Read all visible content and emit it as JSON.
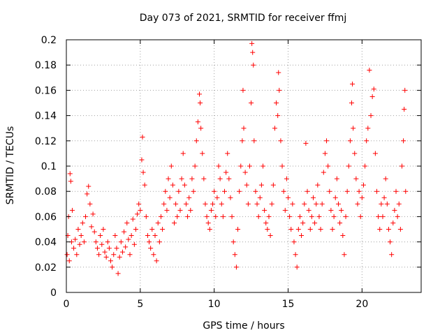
{
  "chart_data": {
    "type": "scatter",
    "title": "Day 073 of 2021, SRMTID for receiver ffmj",
    "xlabel": "GPS time / hours",
    "ylabel": "SRMTID / TECUs",
    "xlim": [
      0,
      24
    ],
    "ylim": [
      0,
      0.2
    ],
    "xticks": [
      0,
      5,
      10,
      15,
      20
    ],
    "xtick_labels": [
      "0",
      "5",
      "10",
      "15",
      "20"
    ],
    "yticks": [
      0,
      0.02,
      0.04,
      0.06,
      0.08,
      0.1,
      0.12,
      0.14,
      0.16,
      0.18,
      0.2
    ],
    "ytick_labels": [
      "0",
      "0.02",
      "0.04",
      "0.06",
      "0.08",
      "0.1",
      "0.12",
      "0.14",
      "0.16",
      "0.18",
      "0.2"
    ],
    "grid": true,
    "marker": "+",
    "color": "#ff0000",
    "series": [
      {
        "name": "SRMTID",
        "points": [
          [
            0.05,
            0.03
          ],
          [
            0.1,
            0.045
          ],
          [
            0.15,
            0.06
          ],
          [
            0.2,
            0.025
          ],
          [
            0.25,
            0.094
          ],
          [
            0.3,
            0.088
          ],
          [
            0.35,
            0.04
          ],
          [
            0.4,
            0.065
          ],
          [
            0.5,
            0.035
          ],
          [
            0.6,
            0.042
          ],
          [
            0.7,
            0.03
          ],
          [
            0.8,
            0.05
          ],
          [
            0.9,
            0.038
          ],
          [
            1.0,
            0.045
          ],
          [
            1.1,
            0.055
          ],
          [
            1.2,
            0.04
          ],
          [
            1.3,
            0.06
          ],
          [
            1.4,
            0.078
          ],
          [
            1.5,
            0.084
          ],
          [
            1.6,
            0.07
          ],
          [
            1.7,
            0.052
          ],
          [
            1.8,
            0.062
          ],
          [
            1.9,
            0.048
          ],
          [
            2.0,
            0.04
          ],
          [
            2.1,
            0.035
          ],
          [
            2.2,
            0.03
          ],
          [
            2.3,
            0.045
          ],
          [
            2.4,
            0.038
          ],
          [
            2.5,
            0.05
          ],
          [
            2.6,
            0.032
          ],
          [
            2.7,
            0.028
          ],
          [
            2.8,
            0.04
          ],
          [
            2.9,
            0.035
          ],
          [
            3.0,
            0.025
          ],
          [
            3.1,
            0.02
          ],
          [
            3.2,
            0.03
          ],
          [
            3.3,
            0.045
          ],
          [
            3.4,
            0.035
          ],
          [
            3.5,
            0.015
          ],
          [
            3.6,
            0.028
          ],
          [
            3.7,
            0.04
          ],
          [
            3.8,
            0.032
          ],
          [
            3.9,
            0.048
          ],
          [
            4.0,
            0.036
          ],
          [
            4.1,
            0.055
          ],
          [
            4.2,
            0.042
          ],
          [
            4.3,
            0.03
          ],
          [
            4.4,
            0.045
          ],
          [
            4.5,
            0.058
          ],
          [
            4.6,
            0.038
          ],
          [
            4.7,
            0.05
          ],
          [
            4.8,
            0.062
          ],
          [
            4.9,
            0.07
          ],
          [
            5.0,
            0.065
          ],
          [
            5.1,
            0.105
          ],
          [
            5.15,
            0.123
          ],
          [
            5.2,
            0.095
          ],
          [
            5.3,
            0.085
          ],
          [
            5.4,
            0.06
          ],
          [
            5.5,
            0.045
          ],
          [
            5.6,
            0.04
          ],
          [
            5.7,
            0.035
          ],
          [
            5.8,
            0.05
          ],
          [
            5.9,
            0.03
          ],
          [
            6.0,
            0.045
          ],
          [
            6.1,
            0.025
          ],
          [
            6.2,
            0.055
          ],
          [
            6.3,
            0.04
          ],
          [
            6.4,
            0.06
          ],
          [
            6.5,
            0.05
          ],
          [
            6.6,
            0.07
          ],
          [
            6.7,
            0.08
          ],
          [
            6.8,
            0.065
          ],
          [
            6.9,
            0.09
          ],
          [
            7.0,
            0.075
          ],
          [
            7.1,
            0.1
          ],
          [
            7.2,
            0.085
          ],
          [
            7.3,
            0.055
          ],
          [
            7.4,
            0.07
          ],
          [
            7.5,
            0.06
          ],
          [
            7.6,
            0.08
          ],
          [
            7.7,
            0.065
          ],
          [
            7.8,
            0.09
          ],
          [
            7.9,
            0.11
          ],
          [
            8.0,
            0.085
          ],
          [
            8.1,
            0.07
          ],
          [
            8.2,
            0.06
          ],
          [
            8.3,
            0.075
          ],
          [
            8.4,
            0.065
          ],
          [
            8.5,
            0.09
          ],
          [
            8.6,
            0.08
          ],
          [
            8.7,
            0.1
          ],
          [
            8.8,
            0.12
          ],
          [
            8.9,
            0.135
          ],
          [
            9.0,
            0.157
          ],
          [
            9.05,
            0.15
          ],
          [
            9.1,
            0.13
          ],
          [
            9.2,
            0.11
          ],
          [
            9.3,
            0.09
          ],
          [
            9.4,
            0.07
          ],
          [
            9.5,
            0.06
          ],
          [
            9.6,
            0.055
          ],
          [
            9.7,
            0.05
          ],
          [
            9.8,
            0.065
          ],
          [
            9.9,
            0.07
          ],
          [
            10.0,
            0.08
          ],
          [
            10.1,
            0.06
          ],
          [
            10.2,
            0.075
          ],
          [
            10.3,
            0.1
          ],
          [
            10.4,
            0.09
          ],
          [
            10.5,
            0.07
          ],
          [
            10.6,
            0.06
          ],
          [
            10.7,
            0.08
          ],
          [
            10.8,
            0.095
          ],
          [
            10.9,
            0.11
          ],
          [
            11.0,
            0.09
          ],
          [
            11.1,
            0.075
          ],
          [
            11.2,
            0.06
          ],
          [
            11.3,
            0.04
          ],
          [
            11.4,
            0.03
          ],
          [
            11.5,
            0.02
          ],
          [
            11.6,
            0.05
          ],
          [
            11.7,
            0.08
          ],
          [
            11.8,
            0.1
          ],
          [
            11.9,
            0.12
          ],
          [
            11.95,
            0.16
          ],
          [
            12.0,
            0.13
          ],
          [
            12.1,
            0.095
          ],
          [
            12.2,
            0.085
          ],
          [
            12.3,
            0.07
          ],
          [
            12.4,
            0.1
          ],
          [
            12.5,
            0.15
          ],
          [
            12.55,
            0.197
          ],
          [
            12.6,
            0.19
          ],
          [
            12.65,
            0.18
          ],
          [
            12.7,
            0.12
          ],
          [
            12.8,
            0.08
          ],
          [
            12.9,
            0.07
          ],
          [
            13.0,
            0.06
          ],
          [
            13.1,
            0.075
          ],
          [
            13.2,
            0.085
          ],
          [
            13.3,
            0.1
          ],
          [
            13.4,
            0.065
          ],
          [
            13.5,
            0.055
          ],
          [
            13.6,
            0.05
          ],
          [
            13.7,
            0.06
          ],
          [
            13.8,
            0.045
          ],
          [
            13.9,
            0.07
          ],
          [
            14.0,
            0.085
          ],
          [
            14.1,
            0.13
          ],
          [
            14.2,
            0.15
          ],
          [
            14.3,
            0.14
          ],
          [
            14.35,
            0.174
          ],
          [
            14.4,
            0.16
          ],
          [
            14.5,
            0.12
          ],
          [
            14.6,
            0.1
          ],
          [
            14.7,
            0.08
          ],
          [
            14.8,
            0.065
          ],
          [
            14.9,
            0.09
          ],
          [
            15.0,
            0.075
          ],
          [
            15.1,
            0.06
          ],
          [
            15.2,
            0.05
          ],
          [
            15.3,
            0.07
          ],
          [
            15.4,
            0.04
          ],
          [
            15.5,
            0.03
          ],
          [
            15.6,
            0.02
          ],
          [
            15.7,
            0.05
          ],
          [
            15.8,
            0.06
          ],
          [
            15.9,
            0.045
          ],
          [
            16.0,
            0.055
          ],
          [
            16.1,
            0.07
          ],
          [
            16.2,
            0.118
          ],
          [
            16.3,
            0.08
          ],
          [
            16.4,
            0.065
          ],
          [
            16.5,
            0.05
          ],
          [
            16.6,
            0.06
          ],
          [
            16.7,
            0.075
          ],
          [
            16.8,
            0.055
          ],
          [
            16.9,
            0.07
          ],
          [
            17.0,
            0.085
          ],
          [
            17.1,
            0.06
          ],
          [
            17.2,
            0.05
          ],
          [
            17.3,
            0.07
          ],
          [
            17.4,
            0.095
          ],
          [
            17.5,
            0.11
          ],
          [
            17.6,
            0.12
          ],
          [
            17.7,
            0.1
          ],
          [
            17.8,
            0.08
          ],
          [
            17.9,
            0.065
          ],
          [
            18.0,
            0.05
          ],
          [
            18.1,
            0.06
          ],
          [
            18.2,
            0.075
          ],
          [
            18.3,
            0.09
          ],
          [
            18.4,
            0.07
          ],
          [
            18.5,
            0.055
          ],
          [
            18.6,
            0.065
          ],
          [
            18.7,
            0.045
          ],
          [
            18.8,
            0.03
          ],
          [
            18.9,
            0.06
          ],
          [
            19.0,
            0.08
          ],
          [
            19.1,
            0.1
          ],
          [
            19.2,
            0.12
          ],
          [
            19.3,
            0.15
          ],
          [
            19.35,
            0.165
          ],
          [
            19.4,
            0.13
          ],
          [
            19.5,
            0.11
          ],
          [
            19.6,
            0.09
          ],
          [
            19.7,
            0.07
          ],
          [
            19.8,
            0.08
          ],
          [
            19.9,
            0.06
          ],
          [
            20.0,
            0.075
          ],
          [
            20.1,
            0.085
          ],
          [
            20.2,
            0.1
          ],
          [
            20.3,
            0.12
          ],
          [
            20.4,
            0.13
          ],
          [
            20.5,
            0.176
          ],
          [
            20.6,
            0.14
          ],
          [
            20.7,
            0.155
          ],
          [
            20.8,
            0.161
          ],
          [
            20.9,
            0.11
          ],
          [
            21.0,
            0.08
          ],
          [
            21.1,
            0.06
          ],
          [
            21.2,
            0.05
          ],
          [
            21.3,
            0.07
          ],
          [
            21.4,
            0.06
          ],
          [
            21.5,
            0.075
          ],
          [
            21.6,
            0.09
          ],
          [
            21.7,
            0.07
          ],
          [
            21.8,
            0.05
          ],
          [
            21.9,
            0.04
          ],
          [
            22.0,
            0.03
          ],
          [
            22.1,
            0.055
          ],
          [
            22.2,
            0.065
          ],
          [
            22.3,
            0.08
          ],
          [
            22.4,
            0.06
          ],
          [
            22.5,
            0.07
          ],
          [
            22.6,
            0.05
          ],
          [
            22.7,
            0.1
          ],
          [
            22.8,
            0.12
          ],
          [
            22.85,
            0.145
          ],
          [
            22.9,
            0.16
          ],
          [
            22.95,
            0.08
          ]
        ]
      }
    ]
  }
}
